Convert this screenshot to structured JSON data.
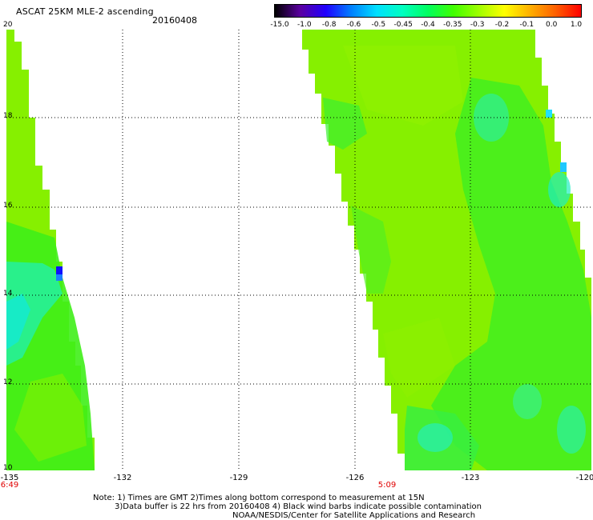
{
  "header": {
    "title": "ASCAT 25KM MLE-2 ascending",
    "date": "20160408"
  },
  "colorbar": {
    "labels": [
      "-15.0",
      "-1.0",
      "-0.8",
      "-0.6",
      "-0.5",
      "-0.45",
      "-0.4",
      "-0.35",
      "-0.3",
      "-0.2",
      "-0.1",
      "0.0",
      "1.0"
    ],
    "colors": [
      "#000000",
      "#5a00a0",
      "#2000ff",
      "#0080ff",
      "#00e0ff",
      "#00ffc0",
      "#00ff60",
      "#40ff00",
      "#a0ff00",
      "#ffff00",
      "#ffb000",
      "#ff6000",
      "#ff0000"
    ]
  },
  "axes": {
    "lat_labels": [
      "20",
      "18",
      "16",
      "14",
      "12",
      "10"
    ],
    "lon_labels": [
      "-135",
      "-132",
      "-129",
      "-126",
      "-123",
      "-120"
    ]
  },
  "swath_times": [
    "6:49",
    "5:09"
  ],
  "notes": {
    "line1": "Note: 1) Times are GMT 2)Times along bottom correspond to measurement at 15N",
    "line2": "3)Data buffer is 22 hrs from 20160408 4) Black wind barbs indicate possible contamination",
    "line3": "NOAA/NESDIS/Center for Satellite Applications and Research"
  },
  "colors": {
    "swath_base": "#86f000",
    "swath_green": "#30ee20",
    "swath_cyan": "#20f0b0",
    "swath_blue": "#1010ff",
    "grid": "#000000",
    "time_label": "#e00000"
  }
}
